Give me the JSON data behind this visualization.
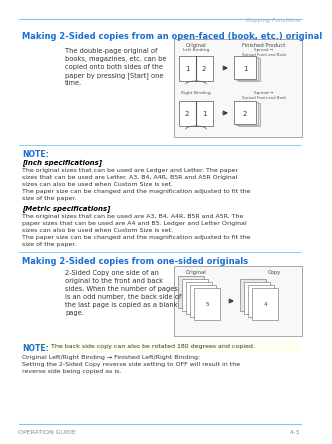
{
  "page_bg": "#ffffff",
  "header_line_color": "#7ec8e8",
  "header_text": "Copying Functions",
  "header_text_color": "#aaaaaa",
  "footer_line_color": "#7ec8e8",
  "footer_left": "OPERATION GUIDE",
  "footer_right": "4-3",
  "footer_text_color": "#888888",
  "section1_title": "Making 2-Sided copies from an open-faced (book, etc.) original",
  "section1_title_color": "#1a6ed8",
  "section1_body1": "The double-page original of",
  "section1_body2": "books, magazines, etc. can be",
  "section1_body3": "copied onto both sides of the",
  "section1_body4": "paper by pressing [Start] one",
  "section1_body5": "time.",
  "note_label": "NOTE:",
  "note_label_color": "#1a6ed8",
  "inch_spec_header": "[Inch specifications]",
  "inch_spec_body1": "The original sizes that can be used are Ledger and Letter. The paper",
  "inch_spec_body2": "sizes that can be used are Letter. A3, B4, A4R, B5R and A5R Original",
  "inch_spec_body3": "sizes can also be used when Custom Size is set.",
  "inch_spec_body4": "The paper size can be changed and the magnification adjusted to fit the",
  "inch_spec_body5": "size of the paper.",
  "metric_spec_header": "[Metric specifications]",
  "metric_spec_body1": "The original sizes that can be used are A3, B4, A4R, B5R and A5R. The",
  "metric_spec_body2": "paper sizes that can be used are A4 and B5. Ledger and Letter Original",
  "metric_spec_body3": "sizes can also be used when Custom Size is set.",
  "metric_spec_body4": "The paper size can be changed and the magnification adjusted to fit the",
  "metric_spec_body5": "size of the paper.",
  "section2_title": "Making 2-Sided copies from one-sided originals",
  "section2_title_color": "#1a6ed8",
  "section2_body1": "2-Sided Copy one side of an",
  "section2_body2": "original to the front and back",
  "section2_body3": "sides. When the number of pages",
  "section2_body4": "is an odd number, the back side of",
  "section2_body5": "the last page is copied as a blank",
  "section2_body6": "page.",
  "note2_label": "NOTE:",
  "note2_label_color": "#1a6ed8",
  "note2_body": " The back side copy can also be rotated 180 degrees and copied.",
  "note2_sub1": "Original Left/Right Binding → Finished Left/Right Binding:",
  "note2_sub2": "Setting the 2-Sided Copy reverse side setting to OFF will result in the",
  "note2_sub3": "reverse side being copied as is.",
  "body_text_color": "#333333",
  "bold_color": "#000000",
  "diag_border": "#999999",
  "diag_bg": "#f8f8f8",
  "arrow_color": "#333333"
}
